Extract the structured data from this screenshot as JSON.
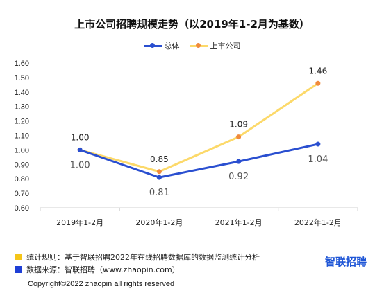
{
  "title": "上市公司招聘规模走势（以2019年1-2月为基数）",
  "chart_data": {
    "type": "line",
    "categories": [
      "2019年1-2月",
      "2020年1-2月",
      "2021年1-2月",
      "2022年1-2月"
    ],
    "series": [
      {
        "name": "总体",
        "color": "#2a4fd0",
        "values": [
          1.0,
          0.81,
          0.92,
          1.04
        ],
        "labels": [
          "1.00",
          "0.81",
          "0.92",
          "1.04"
        ]
      },
      {
        "name": "上市公司",
        "color": "#fcd96a",
        "marker_color": "#f08a3c",
        "values": [
          1.0,
          0.85,
          1.09,
          1.46
        ],
        "labels": [
          "1.00",
          "0.85",
          "1.09",
          "1.46"
        ]
      }
    ],
    "ylim": [
      0.6,
      1.6
    ],
    "yticks": [
      "0.60",
      "0.70",
      "0.80",
      "0.90",
      "1.00",
      "1.10",
      "1.20",
      "1.30",
      "1.40",
      "1.50",
      "1.60"
    ],
    "legend_position": "top-center",
    "grid": false
  },
  "footer": {
    "source_rule": "统计规则：基于智联招聘2022年在线招聘数据库的数据监测统计分析",
    "source_data": "数据来源：智联招聘（www.zhaopin.com）",
    "rule_color": "#f5c518",
    "data_color": "#1e3fd6",
    "brand": "智联招聘",
    "copyright": "Copyright©2022 zhaopin all rights reserved"
  }
}
